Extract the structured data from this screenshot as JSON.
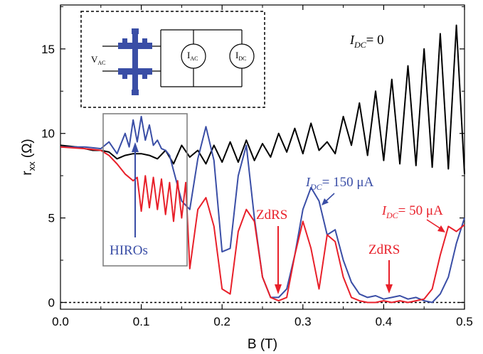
{
  "chart_data": {
    "type": "line",
    "xlabel_main": "B",
    "xlabel_unit": "(T)",
    "ylabel_main": "r",
    "ylabel_sub": "xx",
    "ylabel_unit": "(Ω)",
    "xlim": [
      0.0,
      0.5
    ],
    "ylim": [
      -0.4,
      17.6
    ],
    "xticks": [
      0.0,
      0.1,
      0.2,
      0.3,
      0.4,
      0.5
    ],
    "xtick_labels": [
      "0.0",
      "0.1",
      "0.2",
      "0.3",
      "0.4",
      "0.5"
    ],
    "yticks": [
      0,
      5,
      10,
      15
    ],
    "ytick_labels": [
      "0",
      "5",
      "10",
      "15"
    ],
    "grid": false,
    "zero_line": "dashed",
    "series": [
      {
        "name": "IDC = 0",
        "color": "#000000",
        "x": [
          0.0,
          0.02,
          0.04,
          0.05,
          0.06,
          0.07,
          0.08,
          0.09,
          0.1,
          0.11,
          0.12,
          0.13,
          0.14,
          0.15,
          0.16,
          0.17,
          0.18,
          0.19,
          0.2,
          0.21,
          0.22,
          0.23,
          0.24,
          0.25,
          0.26,
          0.27,
          0.28,
          0.29,
          0.3,
          0.31,
          0.32,
          0.33,
          0.34,
          0.35,
          0.36,
          0.37,
          0.38,
          0.39,
          0.4,
          0.41,
          0.42,
          0.43,
          0.44,
          0.45,
          0.46,
          0.47,
          0.48,
          0.49,
          0.5
        ],
        "y": [
          9.3,
          9.2,
          9.0,
          9.0,
          8.9,
          8.5,
          8.7,
          8.8,
          8.8,
          8.7,
          8.5,
          9.0,
          8.2,
          9.3,
          8.6,
          9.0,
          8.2,
          9.3,
          8.3,
          9.5,
          8.3,
          9.6,
          8.4,
          9.4,
          8.6,
          10.0,
          8.9,
          10.3,
          8.8,
          10.6,
          9.0,
          9.5,
          8.8,
          11.0,
          9.3,
          11.8,
          8.7,
          12.5,
          8.4,
          13.2,
          8.2,
          14.0,
          8.1,
          15.0,
          8.0,
          15.9,
          7.9,
          16.4,
          7.6
        ]
      },
      {
        "name": "IDC = 150 μA",
        "color": "#3a4ea6",
        "x": [
          0.0,
          0.03,
          0.05,
          0.06,
          0.07,
          0.08,
          0.085,
          0.09,
          0.095,
          0.1,
          0.105,
          0.11,
          0.115,
          0.12,
          0.125,
          0.13,
          0.135,
          0.14,
          0.15,
          0.16,
          0.17,
          0.18,
          0.19,
          0.2,
          0.21,
          0.22,
          0.23,
          0.24,
          0.25,
          0.26,
          0.27,
          0.28,
          0.29,
          0.3,
          0.31,
          0.32,
          0.33,
          0.34,
          0.35,
          0.36,
          0.37,
          0.38,
          0.39,
          0.4,
          0.41,
          0.42,
          0.43,
          0.44,
          0.45,
          0.46,
          0.47,
          0.48,
          0.49,
          0.5
        ],
        "y": [
          9.2,
          9.2,
          9.1,
          9.5,
          8.8,
          10.0,
          9.2,
          10.8,
          9.5,
          11.0,
          9.6,
          10.5,
          9.3,
          9.6,
          9.1,
          9.0,
          8.7,
          7.8,
          6.0,
          5.5,
          8.5,
          10.4,
          8.4,
          3.0,
          3.2,
          7.5,
          9.3,
          5.0,
          1.5,
          0.3,
          0.3,
          0.8,
          2.8,
          5.5,
          6.8,
          6.0,
          4.0,
          4.3,
          2.5,
          1.2,
          0.5,
          0.3,
          0.4,
          0.2,
          0.3,
          0.4,
          0.2,
          0.3,
          0.1,
          0.0,
          0.5,
          1.5,
          3.5,
          5.0
        ]
      },
      {
        "name": "IDC = 50 μA",
        "color": "#e8202a",
        "x": [
          0.0,
          0.03,
          0.05,
          0.06,
          0.07,
          0.08,
          0.09,
          0.095,
          0.1,
          0.105,
          0.11,
          0.115,
          0.12,
          0.125,
          0.13,
          0.135,
          0.14,
          0.145,
          0.15,
          0.155,
          0.16,
          0.17,
          0.18,
          0.19,
          0.2,
          0.21,
          0.22,
          0.23,
          0.24,
          0.25,
          0.26,
          0.27,
          0.28,
          0.29,
          0.3,
          0.31,
          0.32,
          0.33,
          0.34,
          0.35,
          0.36,
          0.37,
          0.38,
          0.39,
          0.4,
          0.41,
          0.42,
          0.43,
          0.44,
          0.45,
          0.46,
          0.47,
          0.48,
          0.49,
          0.5
        ],
        "y": [
          9.2,
          9.1,
          9.0,
          8.7,
          8.2,
          7.6,
          7.2,
          7.4,
          5.4,
          7.5,
          5.6,
          7.4,
          5.5,
          7.3,
          5.2,
          7.1,
          4.8,
          7.2,
          5.0,
          7.1,
          2.0,
          5.5,
          6.2,
          4.5,
          0.8,
          0.5,
          4.2,
          5.5,
          4.8,
          1.5,
          0.3,
          0.1,
          0.3,
          2.8,
          4.8,
          3.2,
          0.8,
          4.0,
          3.6,
          1.5,
          0.3,
          0.1,
          0.0,
          0.0,
          0.1,
          0.0,
          0.1,
          0.0,
          0.1,
          0.2,
          0.8,
          2.8,
          4.5,
          4.2,
          4.6
        ]
      }
    ],
    "annotations": [
      {
        "text": "I",
        "sub": "DC",
        "after": "= 0",
        "color": "#000000"
      },
      {
        "text": "I",
        "sub": "DC",
        "after": "= 150 μA",
        "color": "#3a4ea6"
      },
      {
        "text": "I",
        "sub": "DC",
        "after": "= 50 μA",
        "color": "#e8202a"
      },
      {
        "text": "ZdRS",
        "color": "#e8202a"
      },
      {
        "text": "ZdRS",
        "color": "#e8202a"
      },
      {
        "text": "HIROs",
        "color": "#3a4ea6"
      }
    ],
    "inset": {
      "vac_main": "V",
      "vac_sub": "AC",
      "iac_main": "I",
      "iac_sub": "AC",
      "idc_main": "I",
      "idc_sub": "DC",
      "colors": {
        "sample": "#3a4ea6"
      }
    }
  }
}
